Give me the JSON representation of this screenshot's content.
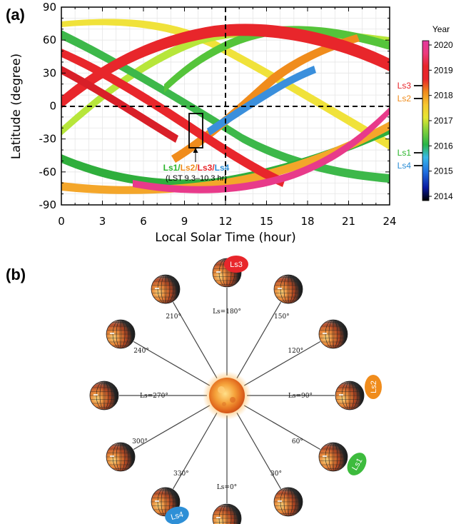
{
  "panel_a": {
    "label": "(a)",
    "ylabel": "Latitude (degree)",
    "xlabel": "Local Solar Time (hour)",
    "xticks": [
      "0",
      "3",
      "6",
      "9",
      "12",
      "15",
      "18",
      "21",
      "24"
    ],
    "yticks": [
      "90",
      "60",
      "30",
      "0",
      "-30",
      "-60",
      "-90"
    ],
    "annotation_names": [
      {
        "text": "Ls1/",
        "color": "#2bb52b"
      },
      {
        "text": "Ls2/",
        "color": "#f08c1c"
      },
      {
        "text": "Ls3/",
        "color": "#e8262b"
      },
      {
        "text": "Ls4",
        "color": "#2e8fd6"
      }
    ],
    "annotation_range": "(LST 9.3–10.3 hr)",
    "colorbar": {
      "title": "Year",
      "ticks": [
        "2020",
        "2019",
        "2018",
        "2017",
        "2016",
        "2015",
        "2014"
      ],
      "markers": [
        {
          "text": "Ls3",
          "color": "#e8262b"
        },
        {
          "text": "Ls2",
          "color": "#f08c1c"
        },
        {
          "text": "Ls1",
          "color": "#2bb52b"
        },
        {
          "text": "Ls4",
          "color": "#2e8fd6"
        }
      ]
    }
  },
  "panel_b": {
    "label": "(b)",
    "angle_labels": [
      "Ls=0°",
      "30°",
      "60°",
      "Ls=90°",
      "120°",
      "150°",
      "Ls=180°",
      "210°",
      "240°",
      "Ls=270°",
      "300°",
      "330°"
    ],
    "badges": [
      {
        "text": "Ls3",
        "color": "#e8262b"
      },
      {
        "text": "Ls2",
        "color": "#f08c1c"
      },
      {
        "text": "Ls1",
        "color": "#3dbb3d"
      },
      {
        "text": "Ls4",
        "color": "#2e8fd6"
      }
    ]
  }
}
